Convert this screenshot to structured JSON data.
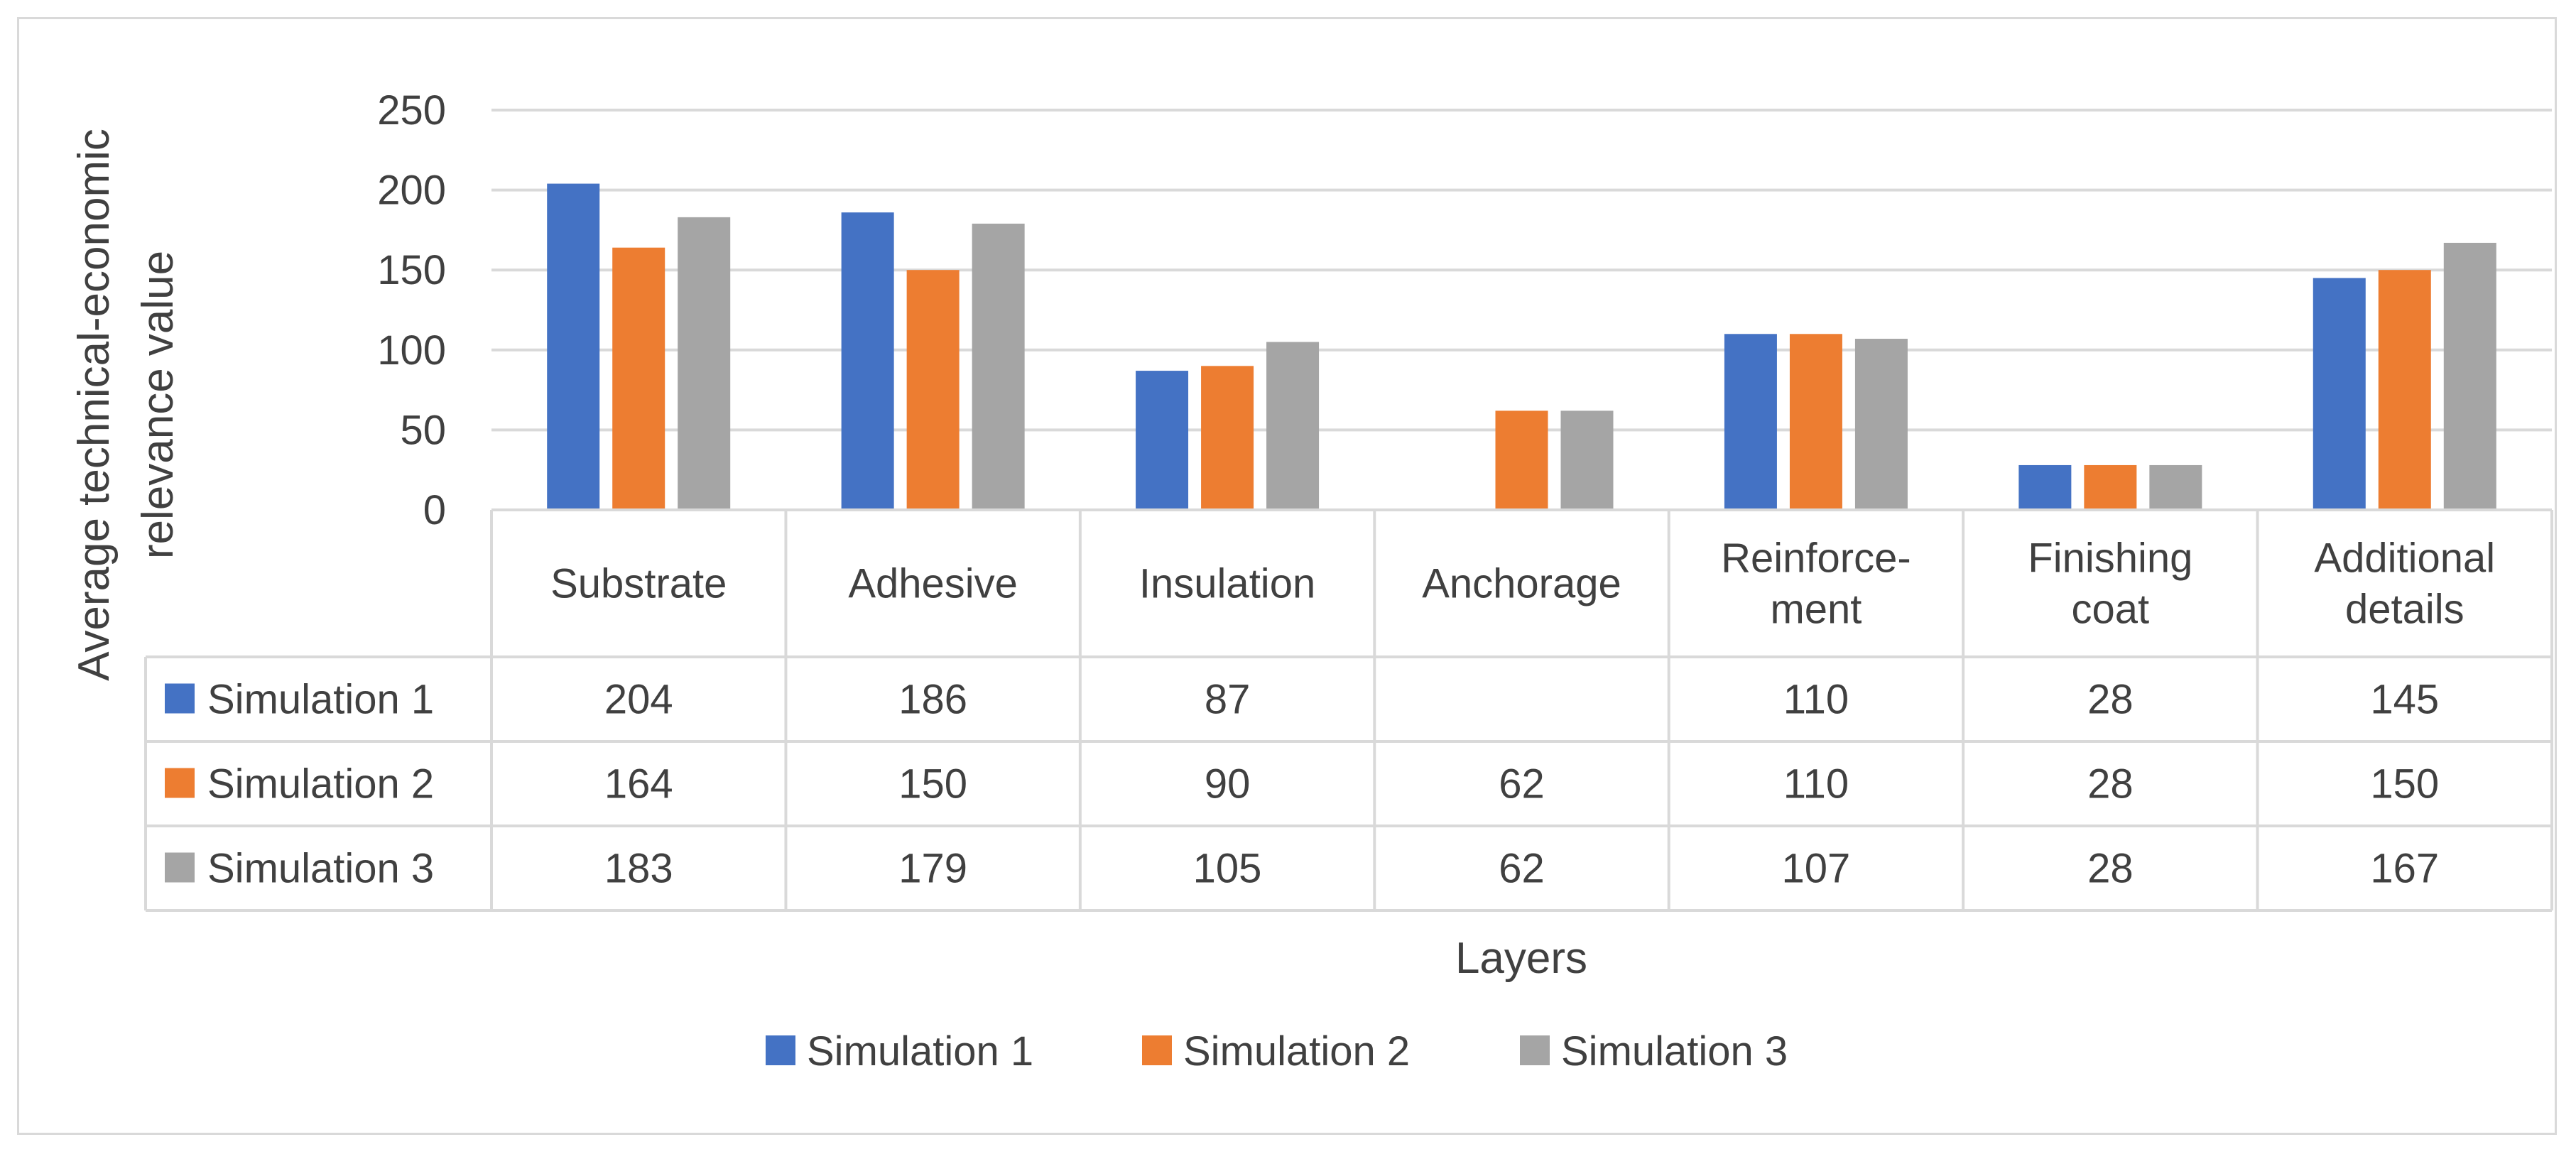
{
  "chart_data": {
    "type": "bar",
    "title": "",
    "xlabel": "Layers",
    "ylabel": "Average technical-economic relevance value",
    "ylabel_lines": [
      "Average technical-economic",
      "relevance value"
    ],
    "ylim": [
      0,
      250
    ],
    "yticks": [
      0,
      50,
      100,
      150,
      200,
      250
    ],
    "grid": true,
    "legend_position": "bottom",
    "categories": [
      "Substrate",
      "Adhesive",
      "Insulation",
      "Anchorage",
      "Reinforce-ment",
      "Finishing coat",
      "Additional details"
    ],
    "category_lines": [
      [
        "Substrate"
      ],
      [
        "Adhesive"
      ],
      [
        "Insulation"
      ],
      [
        "Anchorage"
      ],
      [
        "Reinforce-",
        "ment"
      ],
      [
        "Finishing",
        "coat"
      ],
      [
        "Additional",
        "details"
      ]
    ],
    "series": [
      {
        "name": "Simulation 1",
        "color": "#4472c4",
        "values": [
          204,
          186,
          87,
          null,
          110,
          28,
          145
        ]
      },
      {
        "name": "Simulation 2",
        "color": "#ed7d31",
        "values": [
          164,
          150,
          90,
          62,
          110,
          28,
          150
        ]
      },
      {
        "name": "Simulation 3",
        "color": "#a5a5a5",
        "values": [
          183,
          179,
          105,
          62,
          107,
          28,
          167
        ]
      }
    ],
    "data_table": true
  },
  "colors": {
    "grid": "#d9d9d9",
    "text": "#404040",
    "frame": "#d9d9d9"
  }
}
